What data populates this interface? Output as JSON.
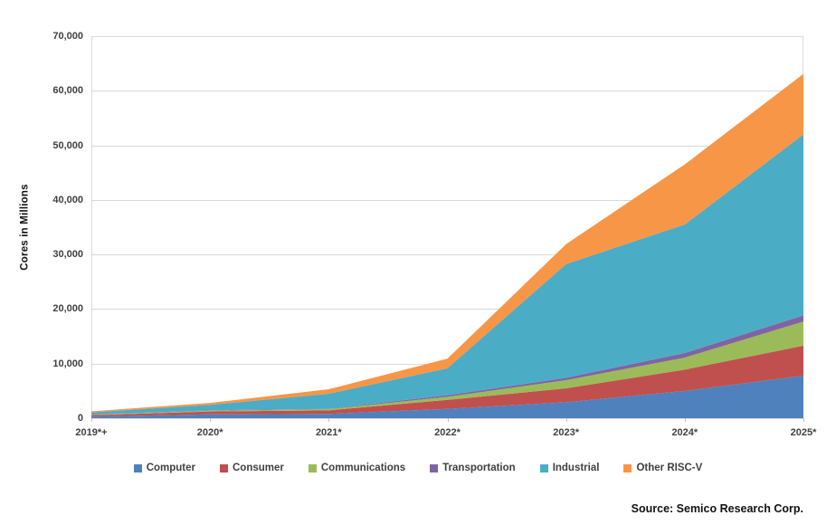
{
  "chart_data": {
    "type": "area",
    "stacked": true,
    "title": "",
    "ylabel": "Cores in Millions",
    "xlabel": "",
    "source": "Source: Semico Research Corp.",
    "legend_position": "bottom",
    "grid": true,
    "gridline_color": "#D9D9D9",
    "tick_color": "#BFBFBF",
    "axis_text_color": "#404040",
    "ylim": [
      0,
      70000
    ],
    "yticks": [
      {
        "value": 0,
        "label": "0"
      },
      {
        "value": 10000,
        "label": "10,000"
      },
      {
        "value": 20000,
        "label": "20,000"
      },
      {
        "value": 30000,
        "label": "30,000"
      },
      {
        "value": 40000,
        "label": "40,000"
      },
      {
        "value": 50000,
        "label": "50,000"
      },
      {
        "value": 60000,
        "label": "60,000"
      },
      {
        "value": 70000,
        "label": "70,000"
      }
    ],
    "categories": [
      "2019*+",
      "2020*",
      "2021*",
      "2022*",
      "2023*",
      "2024*",
      "2025*"
    ],
    "series": [
      {
        "name": "Computer",
        "color": "#4F81BD",
        "values": [
          300,
          700,
          780,
          1700,
          2930,
          5000,
          7800
        ]
      },
      {
        "name": "Consumer",
        "color": "#C0504D",
        "values": [
          250,
          520,
          660,
          1650,
          2540,
          3900,
          5500
        ]
      },
      {
        "name": "Communications",
        "color": "#9BBB59",
        "values": [
          70,
          150,
          210,
          570,
          1490,
          2200,
          4400
        ]
      },
      {
        "name": "Transportation",
        "color": "#8064A2",
        "values": [
          30,
          70,
          60,
          280,
          440,
          850,
          1150
        ]
      },
      {
        "name": "Industrial",
        "color": "#4BACC6",
        "values": [
          420,
          1000,
          2770,
          4950,
          20850,
          23550,
          33150
        ]
      },
      {
        "name": "Other RISC-V",
        "color": "#F79646",
        "values": [
          200,
          360,
          820,
          1750,
          3650,
          11000,
          11100
        ]
      }
    ]
  }
}
